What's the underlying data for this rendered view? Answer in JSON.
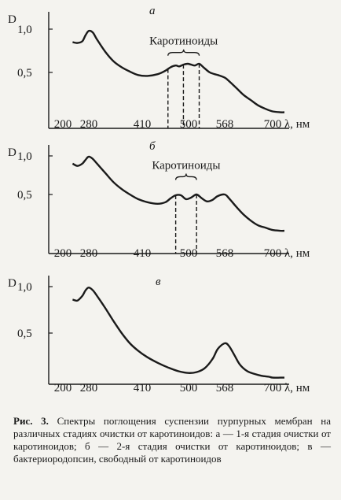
{
  "chart_data": [
    {
      "type": "line",
      "panel_label": "а",
      "ylabel": "D",
      "xlabel": "λ, нм",
      "yticks": [
        "1,0",
        "0,5"
      ],
      "ytick_values": [
        1.0,
        0.5
      ],
      "xticks": [
        "200",
        "280",
        "410",
        "500",
        "568",
        "700"
      ],
      "xtick_values": [
        200,
        280,
        410,
        500,
        568,
        700
      ],
      "annotation": "Каротиноиды",
      "dashed_markers": [
        460,
        490,
        520
      ],
      "series": [
        {
          "x": [
            230,
            245,
            260,
            270,
            280,
            290,
            300,
            320,
            340,
            360,
            380,
            400,
            420,
            440,
            455,
            465,
            475,
            482,
            490,
            498,
            505,
            512,
            520,
            528,
            540,
            555,
            568,
            580,
            600,
            620,
            640,
            660,
            680,
            700,
            720,
            730
          ],
          "y": [
            0.85,
            0.84,
            0.86,
            0.93,
            0.98,
            0.96,
            0.88,
            0.74,
            0.63,
            0.56,
            0.51,
            0.47,
            0.46,
            0.48,
            0.52,
            0.56,
            0.58,
            0.57,
            0.59,
            0.6,
            0.59,
            0.58,
            0.6,
            0.56,
            0.5,
            0.47,
            0.44,
            0.4,
            0.32,
            0.24,
            0.18,
            0.12,
            0.08,
            0.05,
            0.04,
            0.04
          ]
        }
      ]
    },
    {
      "type": "line",
      "panel_label": "б",
      "ylabel": "D",
      "xlabel": "λ, нм",
      "yticks": [
        "1,0",
        "0,5"
      ],
      "ytick_values": [
        1.0,
        0.5
      ],
      "xticks": [
        "200",
        "280",
        "410",
        "500",
        "568",
        "700"
      ],
      "xtick_values": [
        200,
        280,
        410,
        500,
        568,
        700
      ],
      "annotation": "Каротиноиды",
      "dashed_markers": [
        475,
        515
      ],
      "series": [
        {
          "x": [
            230,
            245,
            260,
            270,
            280,
            290,
            300,
            320,
            340,
            360,
            380,
            400,
            420,
            440,
            455,
            465,
            475,
            485,
            495,
            505,
            515,
            525,
            535,
            545,
            555,
            568,
            580,
            600,
            620,
            640,
            660,
            680,
            700,
            720,
            730
          ],
          "y": [
            0.9,
            0.87,
            0.9,
            0.95,
            0.99,
            0.96,
            0.9,
            0.78,
            0.66,
            0.57,
            0.5,
            0.44,
            0.4,
            0.38,
            0.4,
            0.45,
            0.49,
            0.49,
            0.44,
            0.46,
            0.5,
            0.45,
            0.41,
            0.43,
            0.48,
            0.5,
            0.45,
            0.34,
            0.24,
            0.16,
            0.1,
            0.07,
            0.04,
            0.03,
            0.03
          ]
        }
      ]
    },
    {
      "type": "line",
      "panel_label": "в",
      "ylabel": "D",
      "xlabel": "λ, нм",
      "yticks": [
        "1,0",
        "0,5"
      ],
      "ytick_values": [
        1.0,
        0.5
      ],
      "xticks": [
        "200",
        "280",
        "410",
        "500",
        "568",
        "700"
      ],
      "xtick_values": [
        200,
        280,
        410,
        500,
        568,
        700
      ],
      "series": [
        {
          "x": [
            230,
            245,
            260,
            270,
            280,
            290,
            300,
            320,
            340,
            360,
            380,
            400,
            420,
            440,
            460,
            480,
            500,
            515,
            530,
            545,
            555,
            568,
            580,
            595,
            610,
            630,
            650,
            670,
            690,
            700,
            720,
            730
          ],
          "y": [
            0.86,
            0.85,
            0.9,
            0.96,
            0.99,
            0.96,
            0.9,
            0.77,
            0.63,
            0.5,
            0.39,
            0.31,
            0.24,
            0.18,
            0.13,
            0.09,
            0.07,
            0.08,
            0.12,
            0.22,
            0.33,
            0.39,
            0.36,
            0.26,
            0.16,
            0.09,
            0.06,
            0.04,
            0.03,
            0.02,
            0.02,
            0.02
          ]
        }
      ]
    }
  ],
  "caption": {
    "label": "Рис. 3.",
    "text": "Спектры поглощения суспензии пурпурных мембран на различных стадиях очистки от каротиноидов: а — 1-я стадия очистки от каротиноидов; б — 2-я стадия очистки от каротиноидов; в — бактериородопсин, свободный от каротиноидов"
  }
}
